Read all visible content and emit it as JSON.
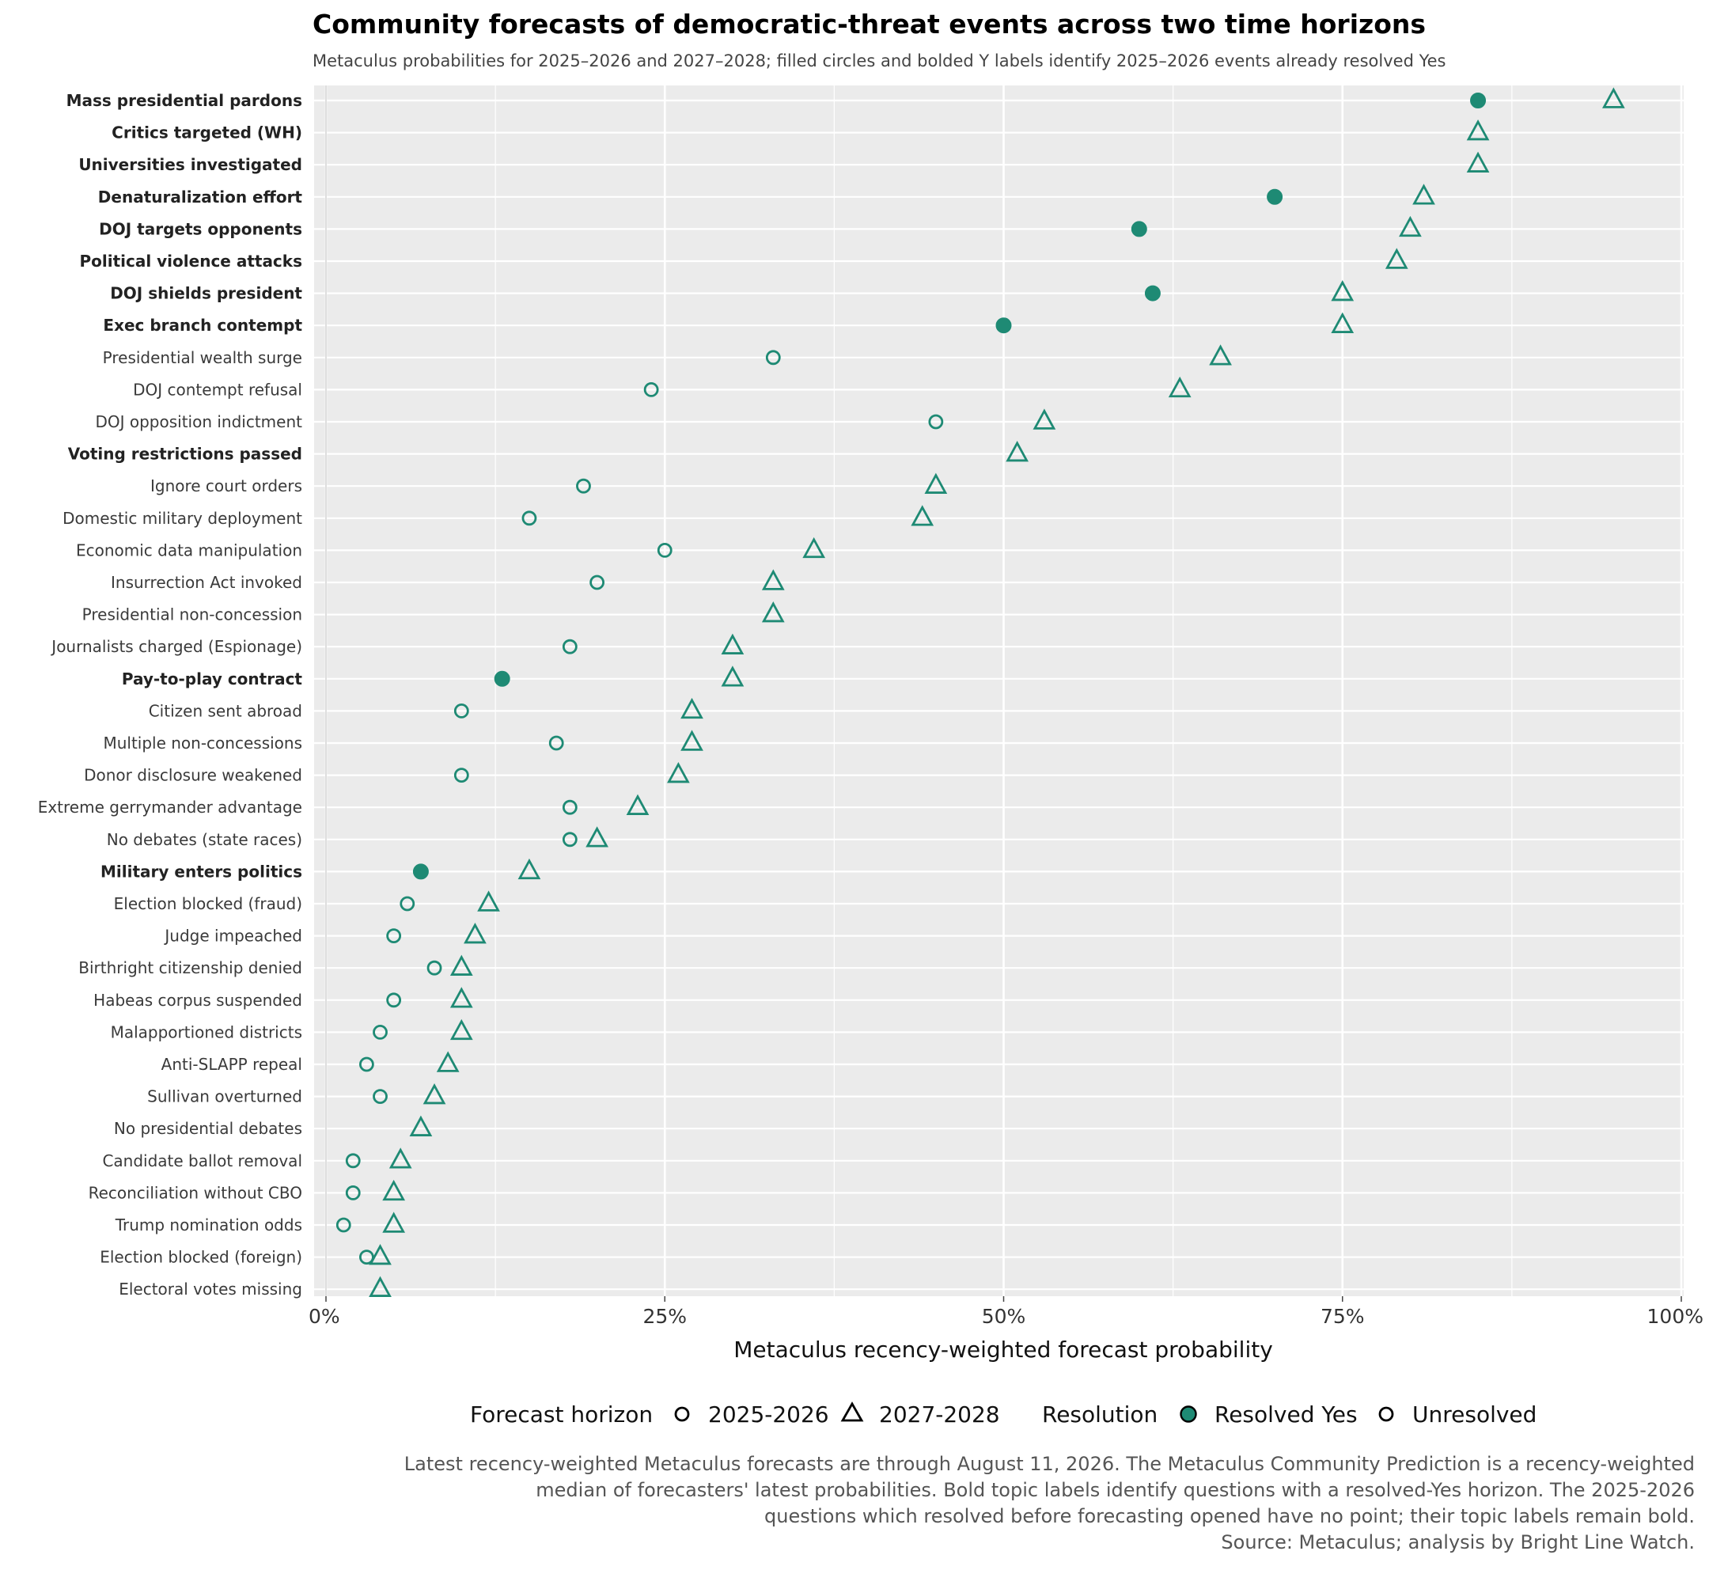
{
  "chart_data": {
    "type": "scatter",
    "title": "Community forecasts of democratic-threat events across two time horizons",
    "subtitle": "Metaculus probabilities for 2025–2026 and 2027–2028; filled circles and bolded Y labels identify 2025–2026 events already resolved Yes",
    "xlabel": "Metaculus recency-weighted forecast probability",
    "ylabel": "",
    "xlim": [
      0,
      100
    ],
    "x_ticks": [
      0,
      25,
      50,
      75,
      100
    ],
    "x_tick_labels": [
      "0%",
      "25%",
      "50%",
      "75%",
      "100%"
    ],
    "grid": true,
    "legend_position": "bottom",
    "colors": {
      "accent": "#1e8a74",
      "panel": "#ebebeb",
      "grid": "#ffffff"
    },
    "legend": {
      "horizon_title": "Forecast horizon",
      "horizon_items": [
        "2025-2026",
        "2027-2028"
      ],
      "resolution_title": "Resolution",
      "resolution_items": [
        "Resolved Yes",
        "Unresolved"
      ]
    },
    "categories": [
      {
        "label": "Mass presidential pardons",
        "bold": true,
        "y2025": 85,
        "resolved": true,
        "y2027": 95
      },
      {
        "label": "Critics targeted (WH)",
        "bold": true,
        "y2025": null,
        "resolved": false,
        "y2027": 85
      },
      {
        "label": "Universities investigated",
        "bold": true,
        "y2025": null,
        "resolved": false,
        "y2027": 85
      },
      {
        "label": "Denaturalization effort",
        "bold": true,
        "y2025": 70,
        "resolved": true,
        "y2027": 81
      },
      {
        "label": "DOJ targets opponents",
        "bold": true,
        "y2025": 60,
        "resolved": true,
        "y2027": 80
      },
      {
        "label": "Political violence attacks",
        "bold": true,
        "y2025": null,
        "resolved": false,
        "y2027": 79
      },
      {
        "label": "DOJ shields president",
        "bold": true,
        "y2025": 61,
        "resolved": true,
        "y2027": 75
      },
      {
        "label": "Exec branch contempt",
        "bold": true,
        "y2025": 50,
        "resolved": true,
        "y2027": 75
      },
      {
        "label": "Presidential wealth surge",
        "bold": false,
        "y2025": 33,
        "resolved": false,
        "y2027": 66
      },
      {
        "label": "DOJ contempt refusal",
        "bold": false,
        "y2025": 24,
        "resolved": false,
        "y2027": 63
      },
      {
        "label": "DOJ opposition indictment",
        "bold": false,
        "y2025": 45,
        "resolved": false,
        "y2027": 53
      },
      {
        "label": "Voting restrictions passed",
        "bold": true,
        "y2025": null,
        "resolved": false,
        "y2027": 51
      },
      {
        "label": "Ignore court orders",
        "bold": false,
        "y2025": 19,
        "resolved": false,
        "y2027": 45
      },
      {
        "label": "Domestic military deployment",
        "bold": false,
        "y2025": 15,
        "resolved": false,
        "y2027": 44
      },
      {
        "label": "Economic data manipulation",
        "bold": false,
        "y2025": 25,
        "resolved": false,
        "y2027": 36
      },
      {
        "label": "Insurrection Act invoked",
        "bold": false,
        "y2025": 20,
        "resolved": false,
        "y2027": 33
      },
      {
        "label": "Presidential non-concession",
        "bold": false,
        "y2025": null,
        "resolved": false,
        "y2027": 33
      },
      {
        "label": "Journalists charged (Espionage)",
        "bold": false,
        "y2025": 18,
        "resolved": false,
        "y2027": 30
      },
      {
        "label": "Pay-to-play contract",
        "bold": true,
        "y2025": 13,
        "resolved": true,
        "y2027": 30
      },
      {
        "label": "Citizen sent abroad",
        "bold": false,
        "y2025": 10,
        "resolved": false,
        "y2027": 27
      },
      {
        "label": "Multiple non-concessions",
        "bold": false,
        "y2025": 17,
        "resolved": false,
        "y2027": 27
      },
      {
        "label": "Donor disclosure weakened",
        "bold": false,
        "y2025": 10,
        "resolved": false,
        "y2027": 26
      },
      {
        "label": "Extreme gerrymander advantage",
        "bold": false,
        "y2025": 18,
        "resolved": false,
        "y2027": 23
      },
      {
        "label": "No debates (state races)",
        "bold": false,
        "y2025": 18,
        "resolved": false,
        "y2027": 20
      },
      {
        "label": "Military enters politics",
        "bold": true,
        "y2025": 7,
        "resolved": true,
        "y2027": 15
      },
      {
        "label": "Election blocked (fraud)",
        "bold": false,
        "y2025": 6,
        "resolved": false,
        "y2027": 12
      },
      {
        "label": "Judge impeached",
        "bold": false,
        "y2025": 5,
        "resolved": false,
        "y2027": 11
      },
      {
        "label": "Birthright citizenship denied",
        "bold": false,
        "y2025": 8,
        "resolved": false,
        "y2027": 10
      },
      {
        "label": "Habeas corpus suspended",
        "bold": false,
        "y2025": 5,
        "resolved": false,
        "y2027": 10
      },
      {
        "label": "Malapportioned districts",
        "bold": false,
        "y2025": 4,
        "resolved": false,
        "y2027": 10
      },
      {
        "label": "Anti-SLAPP repeal",
        "bold": false,
        "y2025": 3,
        "resolved": false,
        "y2027": 9
      },
      {
        "label": "Sullivan overturned",
        "bold": false,
        "y2025": 4,
        "resolved": false,
        "y2027": 8
      },
      {
        "label": "No presidential debates",
        "bold": false,
        "y2025": null,
        "resolved": false,
        "y2027": 7
      },
      {
        "label": "Candidate ballot removal",
        "bold": false,
        "y2025": 2,
        "resolved": false,
        "y2027": 5.5
      },
      {
        "label": "Reconciliation without CBO",
        "bold": false,
        "y2025": 2,
        "resolved": false,
        "y2027": 5
      },
      {
        "label": "Trump nomination odds",
        "bold": false,
        "y2025": 1.3,
        "resolved": false,
        "y2027": 5
      },
      {
        "label": "Election blocked (foreign)",
        "bold": false,
        "y2025": 3,
        "resolved": false,
        "y2027": 4
      },
      {
        "label": "Electoral votes missing",
        "bold": false,
        "y2025": null,
        "resolved": false,
        "y2027": 4
      }
    ],
    "caption_lines": [
      "Latest recency-weighted Metaculus forecasts are through August 11, 2026. The Metaculus Community Prediction is a recency-weighted",
      "median of forecasters' latest probabilities. Bold topic labels identify questions with a resolved-Yes horizon. The 2025-2026",
      "questions which resolved before forecasting opened have no point; their topic labels remain bold.",
      "Source: Metaculus; analysis by Bright Line Watch."
    ]
  }
}
